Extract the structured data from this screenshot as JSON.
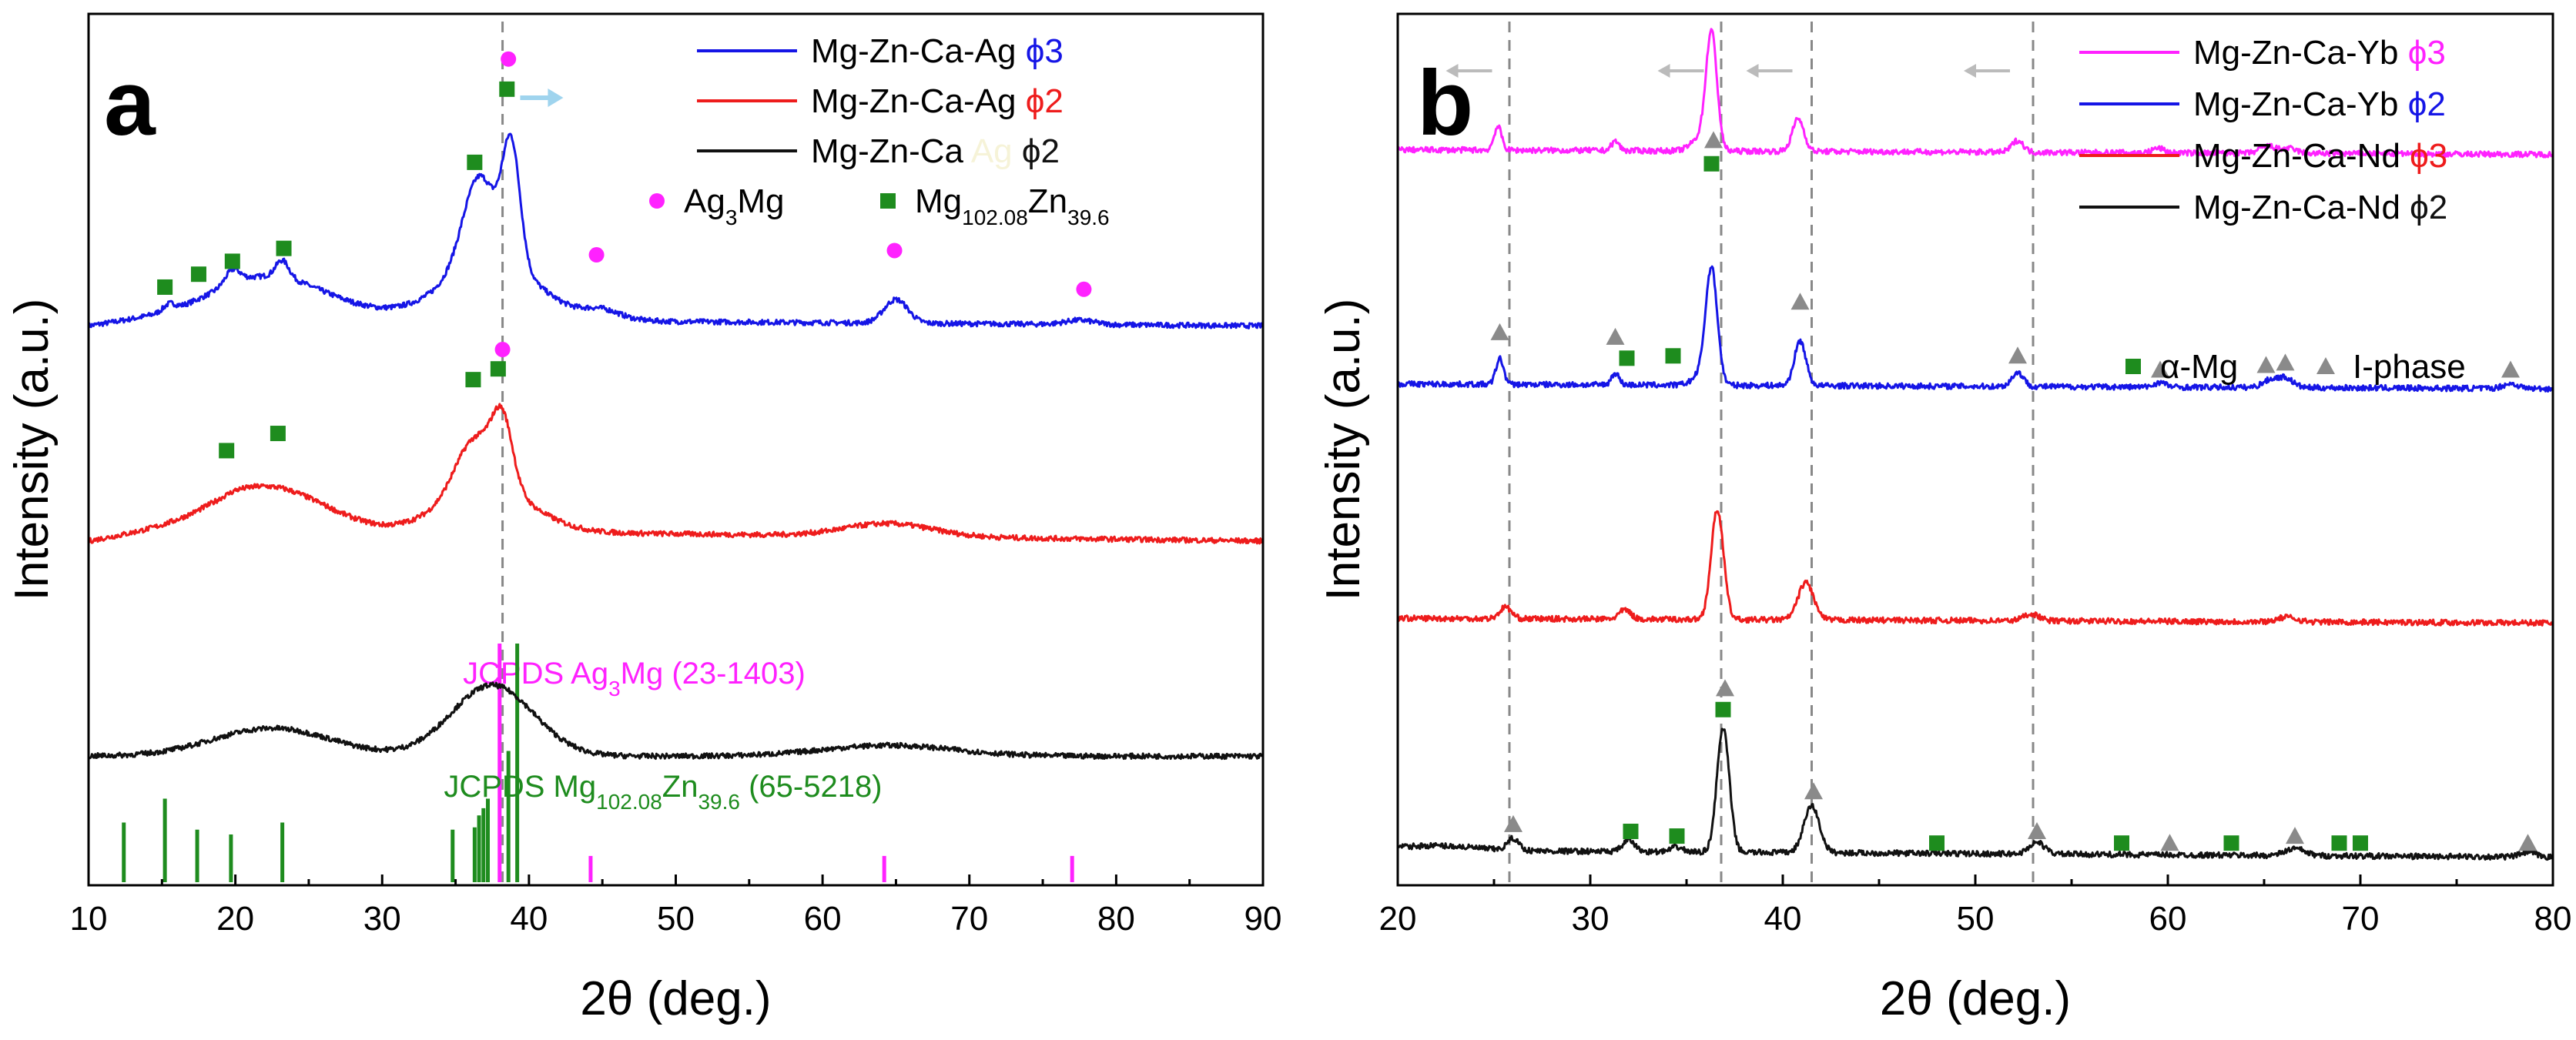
{
  "figure": {
    "panels": [
      "a",
      "b"
    ]
  },
  "chart_data": [
    {
      "type": "line",
      "panel_label": "a",
      "xlabel": "2θ (deg.)",
      "ylabel": "Intensity (a.u.)",
      "xlim": [
        10,
        90
      ],
      "xticks": [
        10,
        20,
        30,
        40,
        50,
        60,
        70,
        80,
        90
      ],
      "colors": {
        "blue": "#1515e6",
        "red": "#ee1c1c",
        "black": "#111111",
        "magenta": "#ff22ff",
        "green": "#1e8c1e",
        "arrow": "#9fd4ee"
      },
      "legend": [
        {
          "name": "Mg-Zn-Ca-Ag",
          "suffix": "ϕ3",
          "suffix_color": "blue",
          "line": "blue"
        },
        {
          "name": "Mg-Zn-Ca-Ag",
          "suffix": "ϕ2",
          "suffix_color": "red",
          "line": "red"
        },
        {
          "name": "Mg-Zn-Ca",
          "hidden_word": "Ag",
          "suffix": "ϕ2",
          "suffix_color": "black",
          "line": "black"
        }
      ],
      "marker_legend": [
        {
          "shape": "circle",
          "color": "magenta",
          "text": "Ag",
          "sub": "3",
          "text2": "Mg"
        },
        {
          "shape": "square",
          "color": "green",
          "text": "Mg",
          "sub": "102.08",
          "text2": "Zn",
          "sub2": "39.6"
        }
      ],
      "series": [
        {
          "name": "Mg-Zn-Ca-Ag ϕ3",
          "color": "blue",
          "offset": 2.0,
          "noise": 0.012,
          "baseline": [
            [
              10,
              0.0
            ],
            [
              20,
              0.1
            ],
            [
              30,
              0.06
            ],
            [
              50,
              0.02
            ],
            [
              90,
              0.0
            ]
          ],
          "peaks": [
            [
              22.5,
              0.14,
              3.5
            ],
            [
              15.5,
              0.03,
              0.4
            ],
            [
              19.8,
              0.06,
              0.5
            ],
            [
              23.2,
              0.08,
              0.45
            ],
            [
              36.6,
              0.4,
              1.1
            ],
            [
              38.8,
              0.55,
              0.6
            ],
            [
              37.5,
              0.26,
              3.0
            ],
            [
              45,
              0.04,
              1.2
            ],
            [
              65,
              0.11,
              0.8
            ],
            [
              77.5,
              0.02,
              1.0
            ]
          ]
        },
        {
          "name": "Mg-Zn-Ca-Ag ϕ2",
          "color": "red",
          "offset": 1.0,
          "noise": 0.012,
          "baseline": [
            [
              10,
              0.0
            ],
            [
              20,
              0.12
            ],
            [
              30,
              0.05
            ],
            [
              90,
              0.0
            ]
          ],
          "peaks": [
            [
              22.5,
              0.15,
              3.5
            ],
            [
              36.3,
              0.24,
              1.3
            ],
            [
              38.2,
              0.3,
              0.7
            ],
            [
              37.2,
              0.2,
              3.0
            ],
            [
              64.5,
              0.06,
              3.0
            ]
          ]
        },
        {
          "name": "Mg-Zn-Ca ϕ2",
          "color": "black",
          "offset": 0.0,
          "noise": 0.012,
          "baseline": [
            [
              10,
              0.0
            ],
            [
              90,
              0.0
            ]
          ],
          "peaks": [
            [
              22.5,
              0.13,
              4.0
            ],
            [
              37.5,
              0.33,
              2.8
            ],
            [
              64.5,
              0.05,
              4.5
            ]
          ]
        }
      ],
      "markers": [
        {
          "shape": "square",
          "color": "green",
          "x": 15.2,
          "y": 2.18
        },
        {
          "shape": "square",
          "color": "green",
          "x": 17.5,
          "y": 2.24
        },
        {
          "shape": "square",
          "color": "green",
          "x": 19.8,
          "y": 2.3
        },
        {
          "shape": "square",
          "color": "green",
          "x": 23.3,
          "y": 2.36
        },
        {
          "shape": "square",
          "color": "green",
          "x": 36.3,
          "y": 2.76
        },
        {
          "shape": "square",
          "color": "green",
          "x": 38.5,
          "y": 3.1
        },
        {
          "shape": "circle",
          "color": "magenta",
          "x": 38.6,
          "y": 3.24
        },
        {
          "shape": "circle",
          "color": "magenta",
          "x": 44.6,
          "y": 2.33
        },
        {
          "shape": "circle",
          "color": "magenta",
          "x": 64.9,
          "y": 2.35
        },
        {
          "shape": "circle",
          "color": "magenta",
          "x": 77.8,
          "y": 2.17
        },
        {
          "shape": "square",
          "color": "green",
          "x": 19.4,
          "y": 1.42
        },
        {
          "shape": "square",
          "color": "green",
          "x": 22.9,
          "y": 1.5
        },
        {
          "shape": "square",
          "color": "green",
          "x": 36.2,
          "y": 1.75
        },
        {
          "shape": "square",
          "color": "green",
          "x": 37.9,
          "y": 1.8
        },
        {
          "shape": "circle",
          "color": "magenta",
          "x": 38.2,
          "y": 1.89
        }
      ],
      "dashed_line_x": 38.2,
      "shift_arrow": {
        "x": 39.4,
        "y": 3.06
      },
      "reference_patterns": [
        {
          "label": "JCPDS Ag",
          "sub": "3",
          "text2": "Mg (23-1403)",
          "color": "magenta",
          "lines": [
            [
              38.0,
              1.0
            ],
            [
              44.2,
              0.11
            ],
            [
              64.2,
              0.11
            ],
            [
              77.0,
              0.11
            ]
          ]
        },
        {
          "label": "JCPDS Mg",
          "sub": "102.08",
          "text2": "Zn",
          "sub2": "39.6",
          "text3": " (65-5218)",
          "color": "green",
          "lines": [
            [
              12.4,
              0.25
            ],
            [
              15.2,
              0.35
            ],
            [
              17.4,
              0.22
            ],
            [
              19.7,
              0.2
            ],
            [
              23.2,
              0.25
            ],
            [
              34.8,
              0.22
            ],
            [
              36.3,
              0.23
            ],
            [
              36.6,
              0.28
            ],
            [
              36.9,
              0.31
            ],
            [
              37.2,
              0.35
            ],
            [
              38.6,
              0.55
            ],
            [
              39.2,
              1.0
            ]
          ]
        }
      ]
    },
    {
      "type": "line",
      "panel_label": "b",
      "xlabel": "2θ (deg.)",
      "ylabel": "Intensity (a.u.)",
      "xlim": [
        20,
        80
      ],
      "xticks": [
        20,
        30,
        40,
        50,
        60,
        70,
        80
      ],
      "colors": {
        "magenta": "#ff22ff",
        "blue": "#1515e6",
        "red": "#ee1c1c",
        "black": "#111111",
        "green": "#1e8c1e",
        "gray": "#8a8a8a"
      },
      "legend": [
        {
          "name": "Mg-Zn-Ca-Yb",
          "suffix": "ϕ3",
          "suffix_color": "magenta",
          "line": "magenta"
        },
        {
          "name": "Mg-Zn-Ca-Yb",
          "suffix": "ϕ2",
          "suffix_color": "blue",
          "line": "blue"
        },
        {
          "name": "Mg-Zn-Ca-Nd",
          "suffix": "ϕ3",
          "suffix_color": "red",
          "line": "red"
        },
        {
          "name": "Mg-Zn-Ca-Nd",
          "suffix": "ϕ2",
          "suffix_color": "black",
          "line": "black"
        }
      ],
      "marker_legend": [
        {
          "shape": "square",
          "color": "green",
          "text": "α-Mg"
        },
        {
          "shape": "triangle",
          "color": "gray",
          "text": "I-phase"
        }
      ],
      "series": [
        {
          "name": "Mg-Zn-Ca-Yb ϕ3",
          "color": "magenta",
          "offset": 3.0,
          "noise": 0.012,
          "baseline": [
            [
              20,
              0.02
            ],
            [
              80,
              0.0
            ]
          ],
          "peaks": [
            [
              25.2,
              0.1,
              0.2
            ],
            [
              31.3,
              0.04,
              0.2
            ],
            [
              36.3,
              0.48,
              0.28
            ],
            [
              35.8,
              0.06,
              0.5
            ],
            [
              40.8,
              0.14,
              0.3
            ],
            [
              52.2,
              0.05,
              0.3
            ],
            [
              59.5,
              0.02,
              0.3
            ],
            [
              65.2,
              0.03,
              0.4
            ],
            [
              66.3,
              0.02,
              0.4
            ]
          ]
        },
        {
          "name": "Mg-Zn-Ca-Yb ϕ2",
          "color": "blue",
          "offset": 2.0,
          "noise": 0.012,
          "baseline": [
            [
              20,
              0.02
            ],
            [
              80,
              0.0
            ]
          ],
          "peaks": [
            [
              25.3,
              0.11,
              0.2
            ],
            [
              31.3,
              0.05,
              0.2
            ],
            [
              36.3,
              0.47,
              0.3
            ],
            [
              35.9,
              0.05,
              0.5
            ],
            [
              40.9,
              0.19,
              0.3
            ],
            [
              52.2,
              0.06,
              0.3
            ],
            [
              59.6,
              0.02,
              0.3
            ],
            [
              65.3,
              0.03,
              0.4
            ],
            [
              66.1,
              0.04,
              0.4
            ],
            [
              77.8,
              0.02,
              0.4
            ]
          ]
        },
        {
          "name": "Mg-Zn-Ca-Nd ϕ3",
          "color": "red",
          "offset": 1.0,
          "noise": 0.012,
          "baseline": [
            [
              20,
              0.02
            ],
            [
              80,
              0.0
            ]
          ],
          "peaks": [
            [
              25.6,
              0.05,
              0.3
            ],
            [
              31.8,
              0.04,
              0.3
            ],
            [
              36.6,
              0.47,
              0.32
            ],
            [
              41.2,
              0.16,
              0.4
            ],
            [
              52.9,
              0.03,
              0.4
            ],
            [
              66.2,
              0.02,
              0.5
            ]
          ]
        },
        {
          "name": "Mg-Zn-Ca-Nd ϕ2",
          "color": "black",
          "offset": 0.0,
          "noise": 0.012,
          "baseline": [
            [
              20,
              0.03
            ],
            [
              80,
              0.0
            ]
          ],
          "peaks": [
            [
              22,
              0.02,
              2.0
            ],
            [
              26.0,
              0.05,
              0.3
            ],
            [
              32.0,
              0.05,
              0.3
            ],
            [
              34.5,
              0.02,
              0.3
            ],
            [
              36.9,
              0.53,
              0.32
            ],
            [
              41.5,
              0.2,
              0.4
            ],
            [
              53.2,
              0.05,
              0.4
            ],
            [
              66.6,
              0.03,
              0.5
            ],
            [
              78.7,
              0.02,
              0.4
            ]
          ]
        }
      ],
      "markers": [
        {
          "shape": "triangle",
          "color": "gray",
          "x": 36.4,
          "y": 3.06
        },
        {
          "shape": "square",
          "color": "green",
          "x": 36.3,
          "y": 2.96
        },
        {
          "shape": "triangle",
          "color": "gray",
          "x": 25.3,
          "y": 2.24
        },
        {
          "shape": "triangle",
          "color": "gray",
          "x": 31.3,
          "y": 2.22
        },
        {
          "shape": "square",
          "color": "green",
          "x": 31.9,
          "y": 2.13
        },
        {
          "shape": "square",
          "color": "green",
          "x": 34.3,
          "y": 2.14
        },
        {
          "shape": "triangle",
          "color": "gray",
          "x": 40.9,
          "y": 2.37
        },
        {
          "shape": "triangle",
          "color": "gray",
          "x": 52.2,
          "y": 2.14
        },
        {
          "shape": "triangle",
          "color": "gray",
          "x": 59.6,
          "y": 2.08
        },
        {
          "shape": "triangle",
          "color": "gray",
          "x": 65.1,
          "y": 2.1
        },
        {
          "shape": "triangle",
          "color": "gray",
          "x": 66.1,
          "y": 2.11
        },
        {
          "shape": "triangle",
          "color": "gray",
          "x": 77.8,
          "y": 2.08
        },
        {
          "shape": "triangle",
          "color": "gray",
          "x": 37.0,
          "y": 0.72
        },
        {
          "shape": "square",
          "color": "green",
          "x": 36.9,
          "y": 0.63
        },
        {
          "shape": "triangle",
          "color": "gray",
          "x": 26.0,
          "y": 0.14
        },
        {
          "shape": "square",
          "color": "green",
          "x": 32.1,
          "y": 0.11
        },
        {
          "shape": "square",
          "color": "green",
          "x": 34.5,
          "y": 0.09
        },
        {
          "shape": "triangle",
          "color": "gray",
          "x": 41.6,
          "y": 0.28
        },
        {
          "shape": "square",
          "color": "green",
          "x": 48.0,
          "y": 0.06
        },
        {
          "shape": "triangle",
          "color": "gray",
          "x": 53.2,
          "y": 0.11
        },
        {
          "shape": "square",
          "color": "green",
          "x": 57.6,
          "y": 0.06
        },
        {
          "shape": "triangle",
          "color": "gray",
          "x": 60.1,
          "y": 0.06
        },
        {
          "shape": "square",
          "color": "green",
          "x": 63.3,
          "y": 0.06
        },
        {
          "shape": "triangle",
          "color": "gray",
          "x": 66.6,
          "y": 0.09
        },
        {
          "shape": "square",
          "color": "green",
          "x": 68.9,
          "y": 0.06
        },
        {
          "shape": "square",
          "color": "green",
          "x": 70.0,
          "y": 0.06
        },
        {
          "shape": "triangle",
          "color": "gray",
          "x": 78.7,
          "y": 0.06
        }
      ],
      "dashed_lines_x": [
        25.8,
        36.8,
        41.5,
        53.0
      ],
      "shift_arrows_x": [
        25.3,
        36.3,
        40.9,
        52.2
      ]
    }
  ]
}
